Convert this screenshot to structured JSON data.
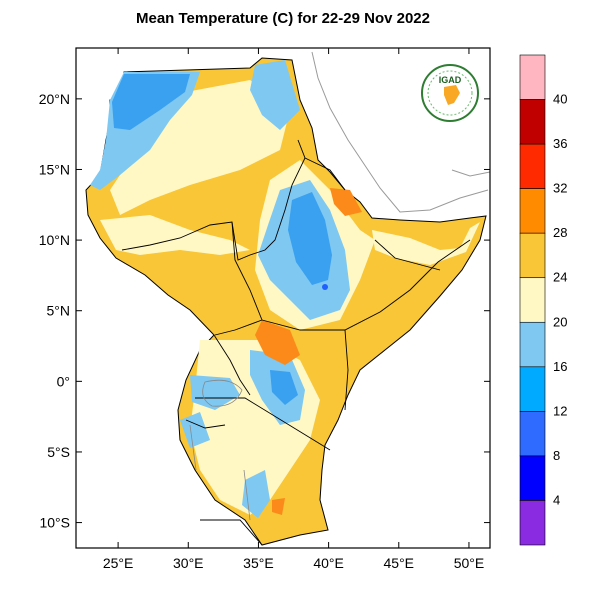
{
  "title": "Mean Temperature (C) for 22-29 Nov 2022",
  "logo": {
    "text": "IGAD",
    "colors": {
      "ring": "#2e7d32",
      "text": "#1b5e20",
      "map": "#f9a825"
    }
  },
  "map": {
    "lon_range": [
      22,
      51.5
    ],
    "lat_range": [
      -11.8,
      23.6
    ],
    "x_ticks": [
      {
        "value": 25,
        "label": "25°E"
      },
      {
        "value": 30,
        "label": "30°E"
      },
      {
        "value": 35,
        "label": "35°E"
      },
      {
        "value": 40,
        "label": "40°E"
      },
      {
        "value": 45,
        "label": "45°E"
      },
      {
        "value": 50,
        "label": "50°E"
      }
    ],
    "y_ticks": [
      {
        "value": 20,
        "label": "20°N"
      },
      {
        "value": 15,
        "label": "15°N"
      },
      {
        "value": 10,
        "label": "10°N"
      },
      {
        "value": 5,
        "label": "5°N"
      },
      {
        "value": 0,
        "label": "0°"
      },
      {
        "value": -5,
        "label": "5°S"
      },
      {
        "value": -10,
        "label": "10°S"
      }
    ],
    "region_colors": {
      "warm": "#f8c637",
      "mild": "#fff8c4",
      "cool": "#7ec8f2",
      "cold": "#3aa0f0",
      "hot": "#fb8a1a",
      "coldest": "#2060ff"
    }
  },
  "colorbar": {
    "bins": [
      {
        "color": "#ffb6c1"
      },
      {
        "color": "#c00000"
      },
      {
        "color": "#ff2a00"
      },
      {
        "color": "#ff8c00"
      },
      {
        "color": "#f8c637"
      },
      {
        "color": "#fff8c4"
      },
      {
        "color": "#7ec8f2"
      },
      {
        "color": "#00aaff"
      },
      {
        "color": "#2f6bff"
      },
      {
        "color": "#0000ff"
      },
      {
        "color": "#8a2be2"
      }
    ],
    "labels": [
      "40",
      "36",
      "32",
      "28",
      "24",
      "20",
      "16",
      "12",
      "8",
      "4"
    ]
  }
}
